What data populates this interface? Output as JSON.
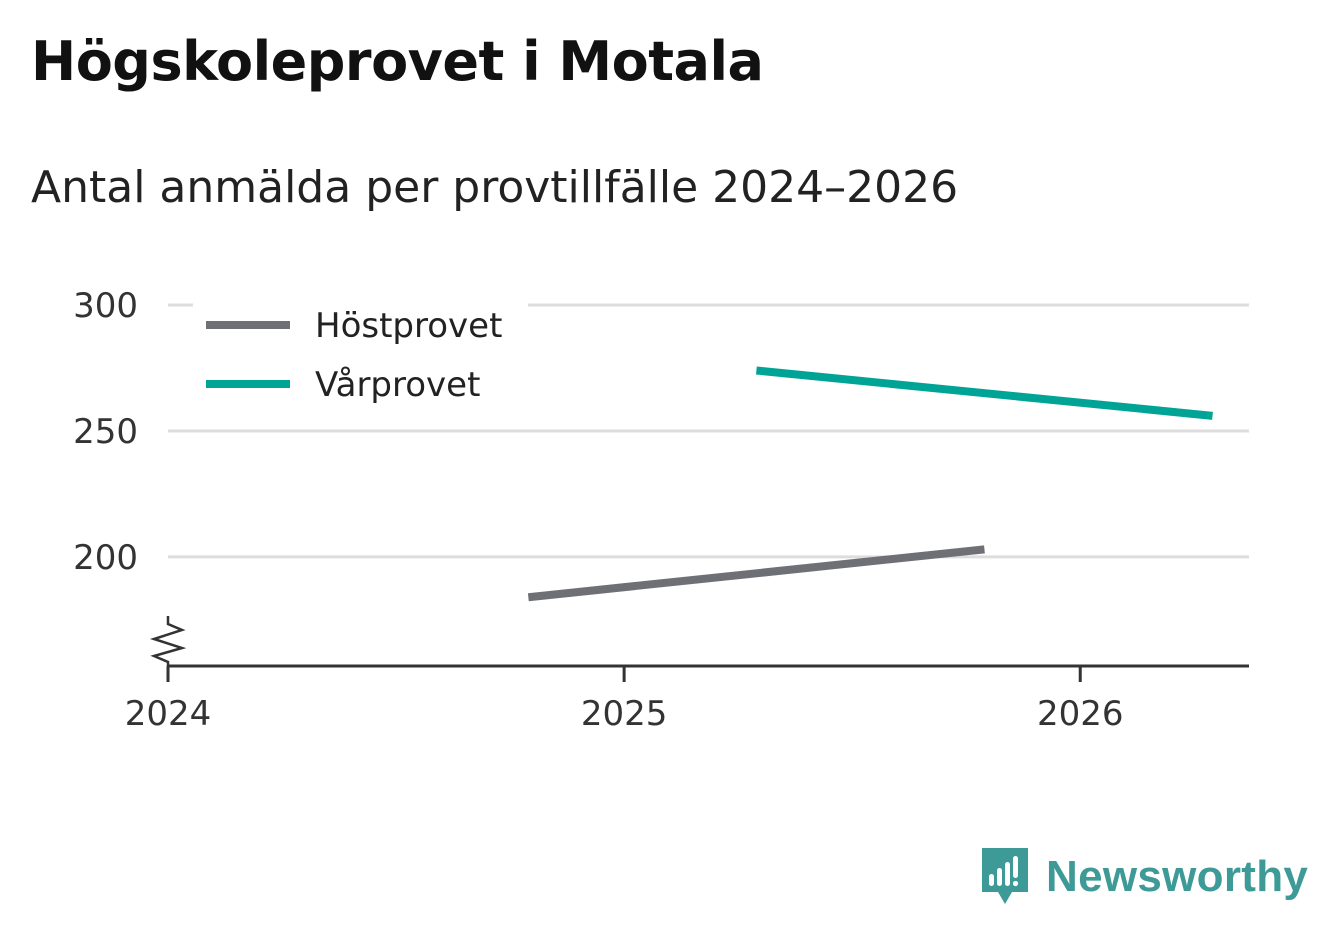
{
  "title": "Högskoleprovet i Motala",
  "subtitle": "Antal anmälda per provtillfälle 2024–2026",
  "brand": {
    "name": "Newsworthy",
    "icon": "newsworthy-logo-icon",
    "color": "#3e9a97"
  },
  "chart_data": {
    "type": "line",
    "title": "Högskoleprovet i Motala",
    "subtitle": "Antal anmälda per provtillfälle 2024–2026",
    "xlabel": "",
    "ylabel": "",
    "x_ticks": [
      2024,
      2025,
      2026
    ],
    "x_tick_labels": [
      "2024",
      "2025",
      "2026"
    ],
    "xlim": [
      2024.0,
      2026.37
    ],
    "y_ticks": [
      200,
      250,
      300
    ],
    "y_tick_labels": [
      "200",
      "250",
      "300"
    ],
    "ylim": [
      156.7,
      300
    ],
    "y_axis_break": true,
    "grid": true,
    "legend_position": "top-left",
    "series": [
      {
        "name": "Höstprovet",
        "color": "#6f6f76",
        "points": [
          {
            "x": 2024.79,
            "y": 184
          },
          {
            "x": 2025.79,
            "y": 203
          }
        ]
      },
      {
        "name": "Vårprovet",
        "color": "#00a497",
        "points": [
          {
            "x": 2025.29,
            "y": 274
          },
          {
            "x": 2026.29,
            "y": 256
          }
        ]
      }
    ]
  }
}
